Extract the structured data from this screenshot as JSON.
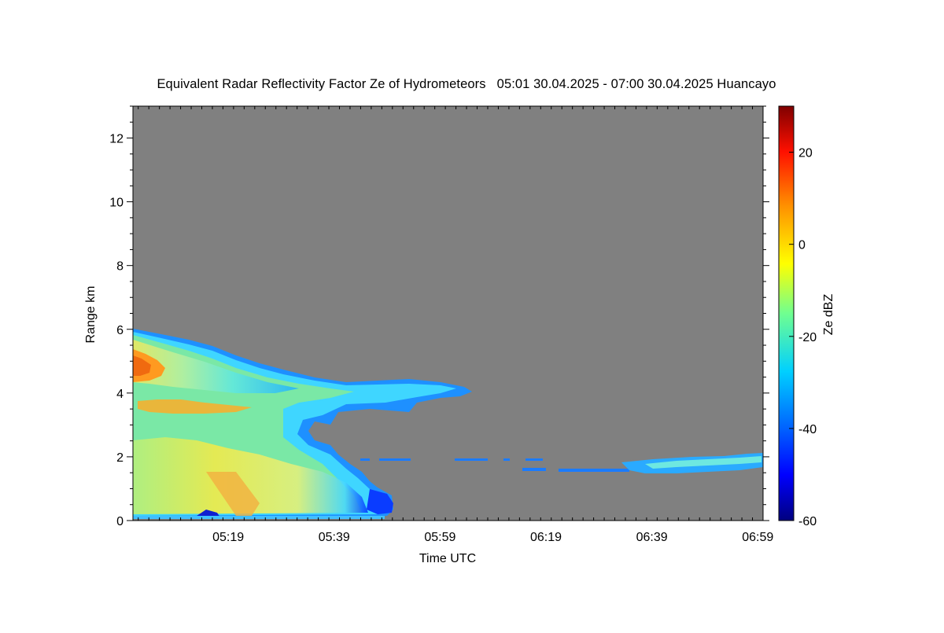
{
  "chart_data": {
    "type": "heatmap",
    "title": "Equivalent Radar Reflectivity Factor Ze of Hydrometeors   05:01 30.04.2025 - 07:00 30.04.2025 Huancayo",
    "xlabel": "Time UTC",
    "ylabel": "Range km",
    "x_tick_labels": [
      "05:19",
      "05:39",
      "05:59",
      "06:19",
      "06:39",
      "06:59"
    ],
    "xlim": [
      "05:01",
      "07:00"
    ],
    "y_ticks": [
      0,
      2,
      4,
      6,
      8,
      10,
      12
    ],
    "y_tick_labels": [
      "0",
      "2",
      "4",
      "6",
      "8",
      "10",
      "12"
    ],
    "ylim": [
      0,
      13
    ],
    "background_color": "#808080",
    "colorbar": {
      "label": "Ze dBZ",
      "ticks": [
        20,
        0,
        -20,
        -40,
        -60
      ],
      "tick_labels": [
        "20",
        "0",
        "-20",
        "-40",
        "-60"
      ],
      "range": [
        -60,
        30
      ],
      "colormap": "jet"
    },
    "echoes": [
      {
        "description": "cloud top boundary (km)",
        "time": [
          "05:01",
          "05:06",
          "05:12",
          "05:18",
          "05:24",
          "05:30",
          "05:36",
          "05:42",
          "05:48",
          "05:54",
          "06:00",
          "06:04",
          "06:08"
        ],
        "range_km": [
          6.0,
          5.9,
          5.6,
          5.3,
          5.0,
          4.7,
          4.6,
          4.5,
          4.5,
          4.5,
          4.3,
          4.15,
          3.9
        ]
      },
      {
        "description": "core reflectivity near 4.5-5 km",
        "time": "05:01-05:08",
        "range_km": [
          4.3,
          5.3
        ],
        "ze_dbz": 5
      },
      {
        "description": "layer near 3.5 km",
        "time": "05:05-05:30",
        "range_km": [
          3.4,
          3.7
        ],
        "ze_dbz": 0
      },
      {
        "description": "low-level precipitation",
        "time": "05:01-05:48",
        "range_km": [
          0,
          3.5
        ],
        "ze_dbz": -10
      },
      {
        "description": "thin layer near 2 km",
        "time": "05:48-06:22",
        "range_km": [
          1.85,
          2.05
        ],
        "ze_dbz": -35
      },
      {
        "description": "thin layer rising to 2.1 km",
        "time": "06:22-06:59",
        "range_km": [
          1.6,
          2.2
        ],
        "ze_dbz": -28
      }
    ]
  }
}
